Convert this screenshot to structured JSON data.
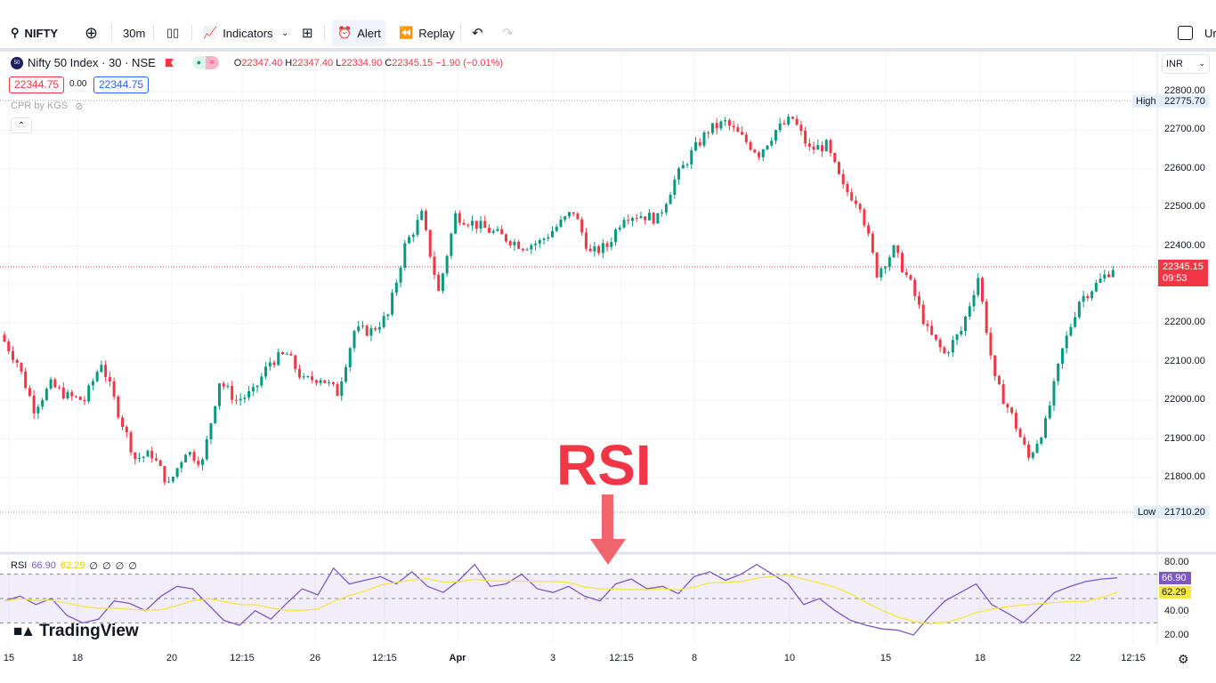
{
  "toolbar": {
    "symbol": "NIFTY",
    "interval": "30m",
    "indicators": "Indicators",
    "alert": "Alert",
    "replay": "Replay",
    "right_cut": "Ur"
  },
  "legend": {
    "title": "Nifty 50 Index · 30 · NSE",
    "logo": "50",
    "o_label": "O",
    "o": "22347.40",
    "h_label": "H",
    "h": "22347.40",
    "l_label": "L",
    "l": "22334.90",
    "c_label": "C",
    "c": "22345.15",
    "change": "−1.90 (−0.01%)",
    "bid": "22344.75",
    "spread": "0.00",
    "ask": "22344.75",
    "indicator": "CPR by KGS"
  },
  "currency": "INR",
  "price_axis": {
    "ticks": [
      "22800.00",
      "22700.00",
      "22600.00",
      "22500.00",
      "22400.00",
      "22200.00",
      "22100.00",
      "22000.00",
      "21900.00",
      "21800.00"
    ],
    "high_label": "High",
    "high": "22775.70",
    "low_label": "Low",
    "low": "21710.20",
    "last": "22345.15",
    "countdown": "09:53"
  },
  "rsi": {
    "label": "RSI",
    "value": "66.90",
    "ma": "62.29",
    "extras": [
      "∅",
      "∅",
      "∅",
      "∅"
    ],
    "ticks": [
      "80.00",
      "40.00",
      "20.00"
    ],
    "colors": {
      "rsi": "#7e57c2",
      "ma": "#f5e642"
    }
  },
  "x_axis": [
    "15",
    "18",
    "20",
    "12:15",
    "26",
    "12:15",
    "Apr",
    "3",
    "12:15",
    "8",
    "10",
    "15",
    "18",
    "22",
    "12:15"
  ],
  "watermark": "TradingView",
  "annotation": {
    "text": "RSI",
    "color": "#f23645"
  },
  "chart_data": {
    "type": "candlestick",
    "approx_closes": [
      22170,
      22100,
      21980,
      22040,
      22010,
      22000,
      22100,
      21970,
      21850,
      21860,
      21780,
      21870,
      21840,
      22050,
      22000,
      22020,
      22100,
      22120,
      22050,
      22060,
      22020,
      22180,
      22180,
      22220,
      22400,
      22480,
      22280,
      22480,
      22460,
      22440,
      22420,
      22400,
      22410,
      22450,
      22490,
      22380,
      22400,
      22480,
      22480,
      22470,
      22570,
      22640,
      22700,
      22720,
      22680,
      22640,
      22700,
      22730,
      22650,
      22660,
      22550,
      22510,
      22330,
      22390,
      22300,
      22180,
      22120,
      22180,
      22320,
      22050,
      21960,
      21850,
      21940,
      22130,
      22260,
      22300,
      22345
    ],
    "rsi_approx": [
      48,
      52,
      45,
      50,
      36,
      30,
      33,
      48,
      46,
      40,
      52,
      60,
      58,
      45,
      32,
      28,
      40,
      33,
      46,
      58,
      53,
      75,
      62,
      65,
      68,
      62,
      72,
      60,
      55,
      65,
      78,
      60,
      62,
      70,
      58,
      55,
      60,
      52,
      48,
      62,
      66,
      58,
      60,
      54,
      68,
      72,
      65,
      70,
      78,
      70,
      62,
      45,
      50,
      40,
      32,
      28,
      25,
      24,
      20,
      35,
      48,
      55,
      62,
      45,
      38,
      30,
      42,
      55,
      60,
      64,
      66,
      67
    ]
  }
}
